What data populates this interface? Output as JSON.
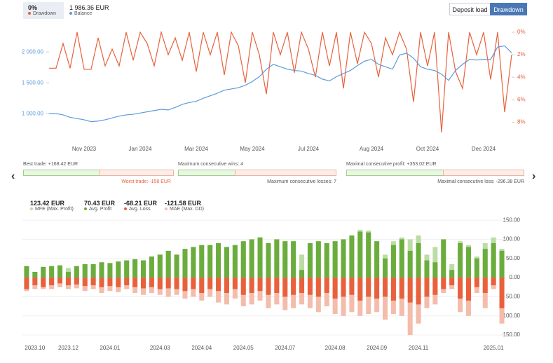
{
  "header": {
    "buttons": [
      "Deposit load",
      "Drawdown"
    ]
  },
  "chart_data": [
    {
      "type": "line",
      "legend_values": [
        "0%",
        "1 986.36 EUR"
      ],
      "categories": [
        null,
        null,
        null,
        null,
        null,
        "Nov 2023",
        null,
        null,
        null,
        null,
        null,
        null,
        null,
        "Jan 2024",
        null,
        null,
        null,
        null,
        null,
        null,
        null,
        "Mar 2024",
        null,
        null,
        null,
        null,
        null,
        null,
        null,
        "May 2024",
        null,
        null,
        null,
        null,
        null,
        null,
        null,
        "Jul 2024",
        null,
        null,
        null,
        null,
        null,
        null,
        null,
        null,
        "Aug 2024",
        null,
        null,
        null,
        null,
        null,
        null,
        null,
        "Oct 2024",
        null,
        null,
        null,
        null,
        null,
        null,
        null,
        "Dec 2024",
        null,
        null,
        null,
        null
      ],
      "ylim": [
        570,
        2320
      ],
      "yticks": [
        {
          "value": 1000,
          "label": "1 000.00"
        },
        {
          "value": 1500,
          "label": "1 500.00"
        },
        {
          "value": 2000,
          "label": "2 000.00"
        }
      ],
      "y2lim": [
        0,
        9.6
      ],
      "y2_inverted": true,
      "y2ticks": [
        {
          "value": 0,
          "label": "0%"
        },
        {
          "value": 2,
          "label": "2%"
        },
        {
          "value": 4,
          "label": "4%"
        },
        {
          "value": 6,
          "label": "6%"
        },
        {
          "value": 8,
          "label": "8%"
        }
      ],
      "series": [
        {
          "name": "Drawdown",
          "color": "#e8613c",
          "axis": "y2",
          "values": [
            3.2,
            3.2,
            1,
            3.2,
            0,
            3.3,
            3.3,
            0.5,
            3,
            1.5,
            3,
            0,
            2.5,
            0,
            1,
            3,
            0,
            2,
            0.5,
            2.5,
            0,
            3.5,
            0,
            2,
            0,
            3.8,
            0,
            1.2,
            4.5,
            0,
            2,
            5.5,
            0,
            2,
            0,
            3.6,
            0,
            1.5,
            4,
            0,
            3,
            0,
            5,
            0,
            2.8,
            0,
            1,
            4,
            0.5,
            2,
            0,
            1.5,
            6.2,
            0,
            3,
            0,
            8.9,
            0,
            3.5,
            5,
            0,
            2,
            0,
            4.2,
            0,
            7.1,
            2
          ]
        },
        {
          "name": "Balance",
          "color": "#5b9bdb",
          "values": [
            1000,
            1000,
            980,
            940,
            920,
            900,
            870,
            880,
            900,
            930,
            960,
            980,
            990,
            1010,
            1030,
            1050,
            1070,
            1060,
            1100,
            1150,
            1180,
            1200,
            1250,
            1290,
            1330,
            1380,
            1400,
            1420,
            1460,
            1520,
            1600,
            1720,
            1800,
            1760,
            1720,
            1700,
            1690,
            1650,
            1620,
            1560,
            1530,
            1600,
            1650,
            1700,
            1780,
            1850,
            1880,
            1800,
            1760,
            1720,
            1950,
            1980,
            1900,
            1760,
            1720,
            1700,
            1640,
            1540,
            1700,
            1800,
            1880,
            1870,
            1880,
            1880,
            2080,
            2100,
            1986.36
          ]
        }
      ]
    },
    {
      "type": "bar",
      "legend_values": [
        "123.42 EUR",
        "70.43 EUR",
        "-68.21 EUR",
        "-121.58 EUR"
      ],
      "categories": [
        null,
        "2023.10",
        null,
        null,
        null,
        "2023.12",
        null,
        null,
        null,
        null,
        "2024.01",
        null,
        null,
        null,
        null,
        null,
        "2024.03",
        null,
        null,
        null,
        null,
        "2024.04",
        null,
        null,
        null,
        null,
        "2024.05",
        null,
        null,
        null,
        null,
        "2024.07",
        null,
        null,
        null,
        null,
        null,
        "2024.08",
        null,
        null,
        null,
        null,
        "2024.09",
        null,
        null,
        null,
        null,
        "2024.11",
        null,
        null,
        null,
        null,
        null,
        null,
        null,
        null,
        "2025.01",
        null
      ],
      "ylim": [
        -170,
        165
      ],
      "yticks": [
        {
          "value": 150,
          "label": "150.00"
        },
        {
          "value": 100,
          "label": "100.00"
        },
        {
          "value": 50,
          "label": "50.00"
        },
        {
          "value": 0,
          "label": "0.00"
        },
        {
          "value": -50,
          "label": "-50.00"
        },
        {
          "value": -100,
          "label": "-100.00"
        },
        {
          "value": -150,
          "label": "-150.00"
        }
      ],
      "grid": true,
      "series": [
        {
          "name": "MFE (Max. Profit)",
          "color": "#bcdca6",
          "values": [
            30,
            15,
            28,
            30,
            32,
            25,
            30,
            35,
            35,
            40,
            38,
            42,
            45,
            48,
            45,
            55,
            60,
            70,
            60,
            75,
            80,
            85,
            85,
            90,
            80,
            85,
            95,
            100,
            105,
            90,
            100,
            95,
            95,
            60,
            90,
            95,
            90,
            95,
            100,
            110,
            125,
            123,
            95,
            60,
            95,
            105,
            100,
            110,
            60,
            80,
            100,
            35,
            95,
            85,
            55,
            90,
            105,
            75
          ]
        },
        {
          "name": "Avg. Profit",
          "color": "#6aad3d",
          "values": [
            30,
            15,
            28,
            30,
            32,
            15,
            30,
            35,
            35,
            40,
            38,
            42,
            45,
            48,
            45,
            55,
            60,
            70,
            60,
            75,
            80,
            85,
            85,
            90,
            80,
            85,
            95,
            100,
            105,
            90,
            100,
            95,
            95,
            20,
            90,
            95,
            90,
            95,
            100,
            110,
            120,
            118,
            95,
            50,
            85,
            100,
            70,
            90,
            45,
            40,
            100,
            20,
            90,
            80,
            50,
            75,
            90,
            70
          ]
        },
        {
          "name": "MAE (Max. DD)",
          "color": "#f4bcab",
          "values": [
            -35,
            -30,
            -30,
            -30,
            -25,
            -30,
            -28,
            -35,
            -30,
            -40,
            -35,
            -38,
            -30,
            -40,
            -45,
            -40,
            -45,
            -50,
            -45,
            -55,
            -50,
            -60,
            -50,
            -65,
            -70,
            -55,
            -75,
            -70,
            -60,
            -80,
            -70,
            -85,
            -80,
            -70,
            -80,
            -90,
            -75,
            -95,
            -100,
            -90,
            -100,
            -95,
            -90,
            -110,
            -95,
            -100,
            -150,
            -120,
            -80,
            -70,
            -40,
            -30,
            -90,
            -100,
            -40,
            -80,
            -30,
            -120
          ]
        },
        {
          "name": "Avg. Loss",
          "color": "#e8613c",
          "values": [
            -30,
            -20,
            -25,
            -20,
            -15,
            -20,
            -18,
            -22,
            -20,
            -25,
            -22,
            -25,
            -20,
            -25,
            -28,
            -25,
            -30,
            -28,
            -30,
            -35,
            -30,
            -40,
            -30,
            -35,
            -40,
            -30,
            -45,
            -40,
            -35,
            -45,
            -40,
            -50,
            -45,
            -40,
            -45,
            -50,
            -40,
            -55,
            -50,
            -45,
            -60,
            -50,
            -55,
            -50,
            -60,
            -55,
            -65,
            -70,
            -50,
            -45,
            -30,
            -20,
            -55,
            -60,
            -25,
            -40,
            -20,
            -80
          ]
        }
      ]
    }
  ],
  "stats": [
    {
      "left": "Best trade: +168.42 EUR",
      "right": "Worst trade: -158 EUR"
    },
    {
      "left": "Maximum consecutive wins: 4",
      "right": "Maximum consecutive losses: 7"
    },
    {
      "left": "Maximal consecutive profit: +353.02 EUR",
      "right": "Maximal consecutive loss: -296.38 EUR"
    }
  ]
}
